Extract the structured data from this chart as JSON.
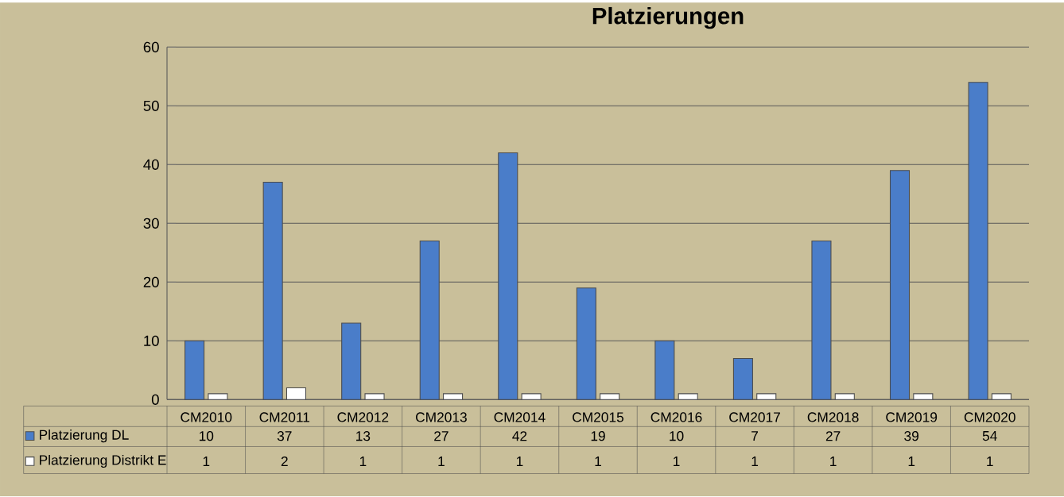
{
  "chart_data": {
    "type": "bar",
    "title": "Platzierungen",
    "categories": [
      "CM2010",
      "CM2011",
      "CM2012",
      "CM2013",
      "CM2014",
      "CM2015",
      "CM2016",
      "CM2017",
      "CM2018",
      "CM2019",
      "CM2020"
    ],
    "series": [
      {
        "name": "Platzierung DL",
        "color": "#4a7dc9",
        "values": [
          10,
          37,
          13,
          27,
          42,
          19,
          10,
          7,
          27,
          39,
          54
        ]
      },
      {
        "name": "Platzierung Distrikt E",
        "color": "#ffffff",
        "values": [
          1,
          2,
          1,
          1,
          1,
          1,
          1,
          1,
          1,
          1,
          1
        ]
      }
    ],
    "ylim": [
      0,
      60
    ],
    "yticks": [
      0,
      10,
      20,
      30,
      40,
      50,
      60
    ],
    "grid": "y",
    "legend": "bottom left",
    "data_labels": true
  }
}
